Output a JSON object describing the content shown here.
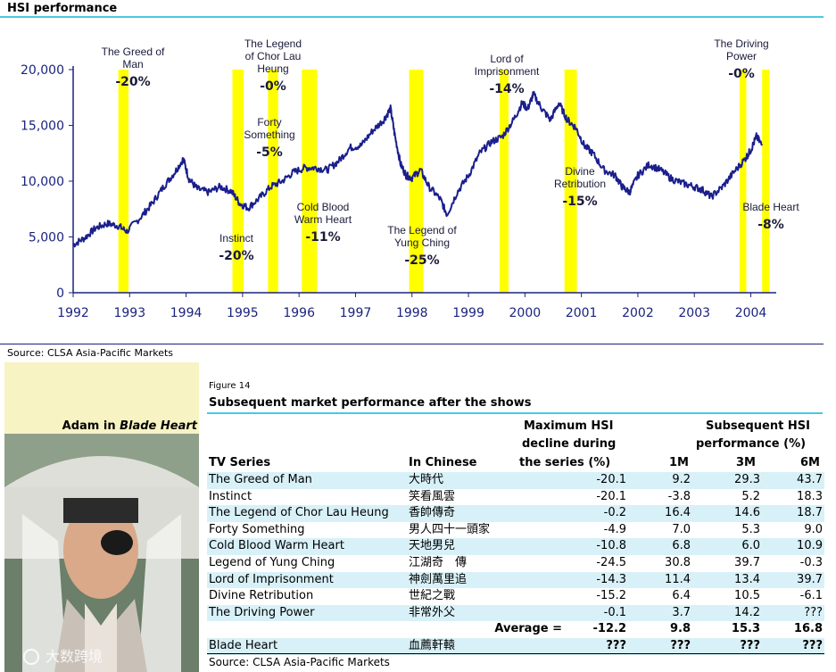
{
  "chart_title": "HSI performance",
  "chart_source": "Source: CLSA Asia-Pacific Markets",
  "chart_data": {
    "type": "line",
    "title": "HSI performance",
    "x_ticks": [
      "1992",
      "1993",
      "1994",
      "1995",
      "1996",
      "1997",
      "1998",
      "1999",
      "2000",
      "2001",
      "2002",
      "2003",
      "2004"
    ],
    "y_ticks": [
      "0",
      "5,000",
      "10,000",
      "15,000",
      "20,000"
    ],
    "xlim": [
      1992.0,
      2004.45
    ],
    "ylim": [
      0,
      20000
    ],
    "series": [
      {
        "x": [
          1992.0,
          1992.2,
          1992.4,
          1992.6,
          1992.8,
          1992.95,
          1993.2,
          1993.4,
          1993.6,
          1993.8,
          1993.95,
          1994.05,
          1994.2,
          1994.4,
          1994.6,
          1994.8,
          1994.95,
          1995.1,
          1995.3,
          1995.5,
          1995.7,
          1995.9,
          1996.1,
          1996.3,
          1996.5,
          1996.7,
          1996.9,
          1997.1,
          1997.3,
          1997.5,
          1997.62,
          1997.7,
          1997.8,
          1997.9,
          1998.0,
          1998.15,
          1998.3,
          1998.5,
          1998.62,
          1998.8,
          1999.0,
          1999.2,
          1999.4,
          1999.6,
          1999.8,
          1999.95,
          2000.05,
          2000.15,
          2000.3,
          2000.45,
          2000.6,
          2000.75,
          2000.9,
          2001.05,
          2001.2,
          2001.4,
          2001.6,
          2001.72,
          2001.85,
          2002.0,
          2002.2,
          2002.4,
          2002.6,
          2002.8,
          2003.0,
          2003.15,
          2003.3,
          2003.5,
          2003.7,
          2003.9,
          2004.0,
          2004.1,
          2004.2
        ],
        "y": [
          4300,
          4900,
          5800,
          6200,
          6000,
          5500,
          6800,
          8000,
          9500,
          10800,
          12000,
          10200,
          9300,
          9000,
          9500,
          9100,
          8000,
          7600,
          8500,
          9500,
          10000,
          10800,
          11200,
          11200,
          11000,
          11800,
          13000,
          13200,
          14500,
          15500,
          16500,
          14000,
          11500,
          10500,
          10300,
          11000,
          9500,
          8400,
          7000,
          9000,
          10500,
          12500,
          13500,
          14000,
          15500,
          17000,
          16500,
          17800,
          16500,
          15500,
          17000,
          15500,
          14800,
          13200,
          12500,
          11000,
          10500,
          9500,
          9000,
          10500,
          11500,
          11000,
          10200,
          9800,
          9500,
          9200,
          8600,
          9500,
          10800,
          12000,
          12800,
          14000,
          13200
        ]
      }
    ],
    "highlight_bands": [
      {
        "start": 1992.8,
        "end": 1992.98
      },
      {
        "start": 1994.82,
        "end": 1995.02
      },
      {
        "start": 1995.45,
        "end": 1995.63
      },
      {
        "start": 1996.05,
        "end": 1996.32
      },
      {
        "start": 1997.95,
        "end": 1998.2
      },
      {
        "start": 1999.55,
        "end": 1999.71
      },
      {
        "start": 2000.7,
        "end": 2000.92
      },
      {
        "start": 2003.8,
        "end": 2003.92
      },
      {
        "start": 2004.2,
        "end": 2004.33
      }
    ],
    "annotations": [
      {
        "label": "The Greed of Man",
        "pct": "-20%",
        "x": 1993.0
      },
      {
        "label": "The Legend of Chor Lau Heung",
        "pct": "-0%",
        "x": 1995.65
      },
      {
        "label": "Forty Something",
        "pct": "-5%",
        "x": 1995.55
      },
      {
        "label": "Instinct",
        "pct": "-20%",
        "x": 1994.82
      },
      {
        "label": "Cold Blood Warm Heart",
        "pct": "-11%",
        "x": 1996.32
      },
      {
        "label": "The Legend of Yung Ching",
        "pct": "-25%",
        "x": 1998.15
      },
      {
        "label": "Lord of Imprisonment",
        "pct": "-14%",
        "x": 1999.55
      },
      {
        "label": "Divine Retribution",
        "pct": "-15%",
        "x": 2000.9
      },
      {
        "label": "The Driving Power",
        "pct": "-0%",
        "x": 2003.8
      },
      {
        "label": "Blade Heart",
        "pct": "-8%",
        "x": 2004.3
      }
    ]
  },
  "photo": {
    "caption_prefix": "Adam in ",
    "caption_title": "Blade Heart",
    "watermark": "大数跨境"
  },
  "figure": {
    "label": "Figure 14",
    "title": "Subsequent market performance after the shows",
    "headers": {
      "col_series": "TV Series",
      "col_chinese": "In Chinese",
      "max_line1": "Maximum HSI",
      "max_line2": "decline during",
      "max_line3": "the series (%)",
      "sub_line1": "Subsequent HSI",
      "sub_line2": "performance (%)",
      "m1": "1M",
      "m3": "3M",
      "m6": "6M"
    },
    "rows": [
      {
        "name": "The Greed of Man",
        "cn": "大時代",
        "max": "-20.1",
        "m1": "9.2",
        "m3": "29.3",
        "m6": "43.7"
      },
      {
        "name": "Instinct",
        "cn": "笑看風雲",
        "max": "-20.1",
        "m1": "-3.8",
        "m3": "5.2",
        "m6": "18.3"
      },
      {
        "name": "The Legend of Chor Lau Heung",
        "cn": "香帥傳奇",
        "max": "-0.2",
        "m1": "16.4",
        "m3": "14.6",
        "m6": "18.7"
      },
      {
        "name": "Forty Something",
        "cn": "男人四十一頭家",
        "max": "-4.9",
        "m1": "7.0",
        "m3": "5.3",
        "m6": "9.0"
      },
      {
        "name": "Cold Blood Warm Heart",
        "cn": "天地男兒",
        "max": "-10.8",
        "m1": "6.8",
        "m3": "6.0",
        "m6": "10.9"
      },
      {
        "name": "Legend of Yung Ching",
        "cn": "江湖奇　傳",
        "max": "-24.5",
        "m1": "30.8",
        "m3": "39.7",
        "m6": "-0.3"
      },
      {
        "name": "Lord of Imprisonment",
        "cn": "神劍萬里追",
        "max": "-14.3",
        "m1": "11.4",
        "m3": "13.4",
        "m6": "39.7"
      },
      {
        "name": "Divine Retribution",
        "cn": "世紀之戰",
        "max": "-15.2",
        "m1": "6.4",
        "m3": "10.5",
        "m6": "-6.1"
      },
      {
        "name": "The Driving Power",
        "cn": "非常外父",
        "max": "-0.1",
        "m1": "3.7",
        "m3": "14.2",
        "m6": "???"
      }
    ],
    "average": {
      "label": "Average =",
      "max": "-12.2",
      "m1": "9.8",
      "m3": "15.3",
      "m6": "16.8"
    },
    "blade_heart": {
      "name": "Blade Heart",
      "cn": "血薦軒轅",
      "max": "???",
      "m1": "???",
      "m3": "???",
      "m6": "???"
    },
    "source": "Source: CLSA Asia-Pacific Markets"
  },
  "colors": {
    "line": "#1a1f8c",
    "band": "#ffff00",
    "axis": "#1a237e",
    "rule": "#4bc8e0",
    "shade": "#d8f1f8",
    "photo_bg": "#f7f3c3"
  }
}
